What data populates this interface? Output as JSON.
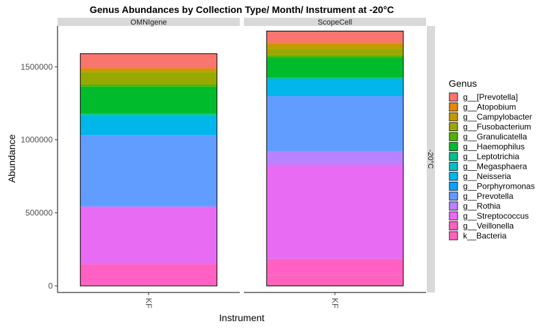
{
  "chart_data": {
    "type": "bar",
    "stacked": true,
    "title": "Genus Abundances by Collection Type/ Month/ Instrument at -20°C",
    "xlabel": "Instrument",
    "ylabel": "Abundance",
    "ylim": [
      -45000,
      1780000
    ],
    "yticks": [
      0,
      500000,
      1000000,
      1500000
    ],
    "ytick_labels": [
      "0",
      "500000",
      "1000000",
      "1500000"
    ],
    "row_facet": "-20°C",
    "legend_title": "Genus",
    "legend_position": "right",
    "grid": false,
    "series": [
      {
        "name": "g__[Prevotella]",
        "color": "#F8766D"
      },
      {
        "name": "g__Atopobium",
        "color": "#E38900"
      },
      {
        "name": "g__Campylobacter",
        "color": "#C49A00"
      },
      {
        "name": "g__Fusobacterium",
        "color": "#99A800"
      },
      {
        "name": "g__Granulicatella",
        "color": "#53B400"
      },
      {
        "name": "g__Haemophilus",
        "color": "#00BC2D"
      },
      {
        "name": "g__Leptotrichia",
        "color": "#00C08E"
      },
      {
        "name": "g__Megasphaera",
        "color": "#00BFC4"
      },
      {
        "name": "g__Neisseria",
        "color": "#00B6EB"
      },
      {
        "name": "g__Porphyromonas",
        "color": "#06A4FF"
      },
      {
        "name": "g__Prevotella",
        "color": "#619CFF"
      },
      {
        "name": "g__Rothia",
        "color": "#B983FF"
      },
      {
        "name": "g__Streptococcus",
        "color": "#E76BF3"
      },
      {
        "name": "g__Veillonella",
        "color": "#FF61C3"
      },
      {
        "name": "k__Bacteria",
        "color": "#FF62BC"
      }
    ],
    "panels": [
      {
        "strip": "OMNIgene",
        "category": "KF",
        "segments": [
          {
            "genus": "k__Bacteria",
            "value": 5000
          },
          {
            "genus": "g__Veillonella",
            "value": 145000
          },
          {
            "genus": "g__Streptococcus",
            "value": 385000
          },
          {
            "genus": "g__Rothia",
            "value": 10000
          },
          {
            "genus": "g__Prevotella",
            "value": 485000
          },
          {
            "genus": "g__Porphyromonas",
            "value": 5000
          },
          {
            "genus": "g__Neisseria",
            "value": 125000
          },
          {
            "genus": "g__Megasphaera",
            "value": 10000
          },
          {
            "genus": "g__Leptotrichia",
            "value": 10000
          },
          {
            "genus": "g__Haemophilus",
            "value": 185000
          },
          {
            "genus": "g__Granulicatella",
            "value": 15000
          },
          {
            "genus": "g__Fusobacterium",
            "value": 85000
          },
          {
            "genus": "g__Campylobacter",
            "value": 20000
          },
          {
            "genus": "g__Atopobium",
            "value": 5000
          },
          {
            "genus": "g__[Prevotella]",
            "value": 100000
          }
        ]
      },
      {
        "strip": "ScopeCell",
        "category": "KF",
        "segments": [
          {
            "genus": "k__Bacteria",
            "value": 75000
          },
          {
            "genus": "g__Veillonella",
            "value": 110000
          },
          {
            "genus": "g__Streptococcus",
            "value": 645000
          },
          {
            "genus": "g__Rothia",
            "value": 90000
          },
          {
            "genus": "g__Prevotella",
            "value": 380000
          },
          {
            "genus": "g__Porphyromonas",
            "value": 5000
          },
          {
            "genus": "g__Neisseria",
            "value": 110000
          },
          {
            "genus": "g__Megasphaera",
            "value": 5000
          },
          {
            "genus": "g__Leptotrichia",
            "value": 5000
          },
          {
            "genus": "g__Haemophilus",
            "value": 140000
          },
          {
            "genus": "g__Granulicatella",
            "value": 15000
          },
          {
            "genus": "g__Fusobacterium",
            "value": 45000
          },
          {
            "genus": "g__Campylobacter",
            "value": 35000
          },
          {
            "genus": "g__Atopobium",
            "value": 5000
          },
          {
            "genus": "g__[Prevotella]",
            "value": 80000
          }
        ]
      }
    ]
  }
}
